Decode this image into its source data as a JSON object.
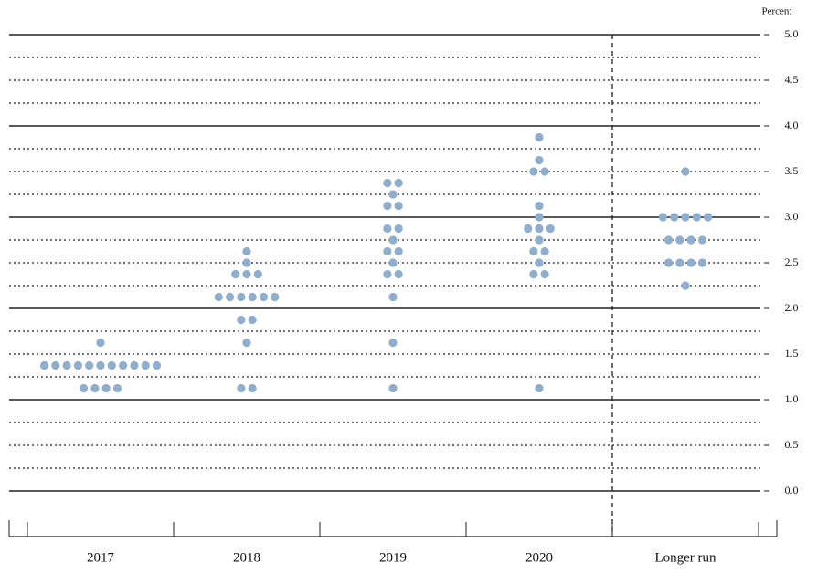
{
  "chart_data": {
    "type": "dot",
    "y_label": "Percent",
    "categories": [
      "2017",
      "2018",
      "2019",
      "2020",
      "Longer run"
    ],
    "dots": [
      {
        "values": [
          1.625,
          1.375,
          1.125
        ],
        "counts": [
          1,
          11,
          4
        ]
      },
      {
        "values": [
          2.625,
          2.5,
          2.375,
          2.125,
          1.875,
          1.625,
          1.125
        ],
        "counts": [
          1,
          1,
          3,
          6,
          2,
          1,
          2
        ]
      },
      {
        "values": [
          3.375,
          3.25,
          3.125,
          2.875,
          2.75,
          2.625,
          2.5,
          2.375,
          2.125,
          1.625,
          1.125
        ],
        "counts": [
          2,
          1,
          2,
          2,
          1,
          2,
          1,
          2,
          1,
          1,
          1
        ]
      },
      {
        "values": [
          3.875,
          3.625,
          3.5,
          3.125,
          3.0,
          2.875,
          2.75,
          2.625,
          2.5,
          2.375,
          1.125
        ],
        "counts": [
          1,
          1,
          2,
          1,
          1,
          3,
          1,
          2,
          1,
          2,
          1
        ]
      },
      {
        "values": [
          3.5,
          3.0,
          2.75,
          2.5,
          2.25
        ],
        "counts": [
          1,
          5,
          4,
          4,
          1
        ]
      }
    ],
    "color": "#8fadcc",
    "ylim": [
      0,
      5
    ],
    "yticks": [
      {
        "value": 0,
        "label": "0.0"
      },
      {
        "value": 0.5,
        "label": "0.5"
      },
      {
        "value": 1,
        "label": "1.0"
      },
      {
        "value": 1.5,
        "label": "1.5"
      },
      {
        "value": 2,
        "label": "2.0"
      },
      {
        "value": 2.5,
        "label": "2.5"
      },
      {
        "value": 3,
        "label": "3.0"
      },
      {
        "value": 3.5,
        "label": "3.5"
      },
      {
        "value": 4,
        "label": "4.0"
      },
      {
        "value": 4.5,
        "label": "4.5"
      },
      {
        "value": 5,
        "label": "5.0"
      }
    ],
    "minor_yticks": [
      0.25,
      0.75,
      1.25,
      1.75,
      2.25,
      2.75,
      3.25,
      3.75,
      4.25,
      4.75
    ],
    "grid": true
  }
}
